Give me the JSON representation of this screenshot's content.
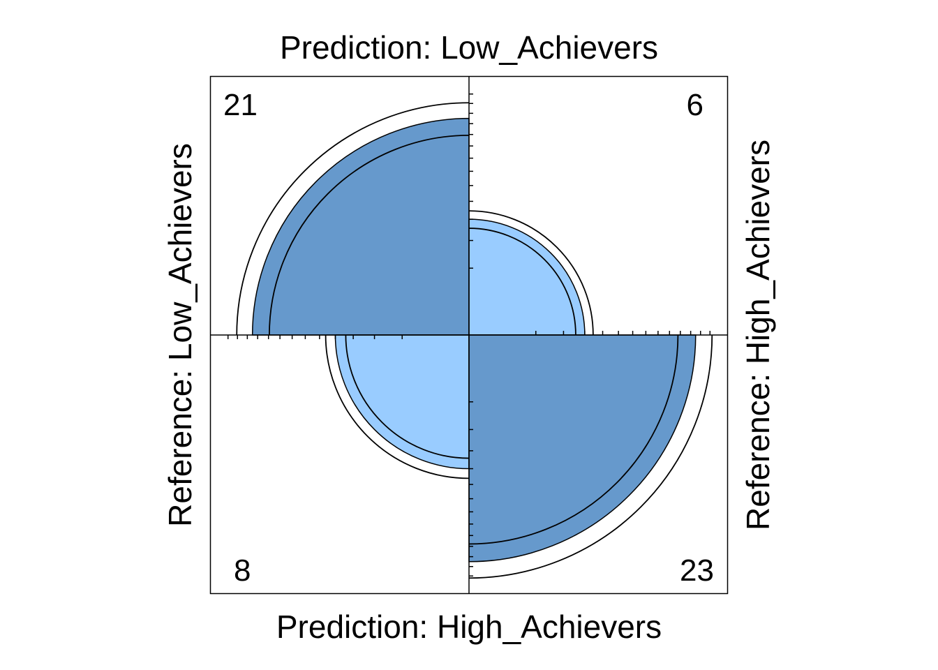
{
  "chart_data": {
    "type": "fourfold",
    "top_label": "Prediction: Low_Achievers",
    "bottom_label": "Prediction: High_Achievers",
    "left_label": "Reference: Low_Achievers",
    "right_label": "Reference: High_Achievers",
    "cells": [
      {
        "id": "top-left",
        "prediction": "Low_Achievers",
        "reference": "Low_Achievers",
        "count": "21",
        "value": 21,
        "quadrant": "top-left",
        "shade": "dark"
      },
      {
        "id": "top-right",
        "prediction": "Low_Achievers",
        "reference": "High_Achievers",
        "count": "6",
        "value": 6,
        "quadrant": "top-right",
        "shade": "light"
      },
      {
        "id": "bottom-left",
        "prediction": "High_Achievers",
        "reference": "Low_Achievers",
        "count": "8",
        "value": 8,
        "quadrant": "bottom-left",
        "shade": "light"
      },
      {
        "id": "bottom-right",
        "prediction": "High_Achievers",
        "reference": "High_Achievers",
        "count": "23",
        "value": 23,
        "quadrant": "bottom-right",
        "shade": "dark"
      }
    ],
    "confidence_ring_scale": {
      "inner": 0.85,
      "outer": 1.15
    },
    "colors": {
      "dark": "#6699cc",
      "light": "#99ccff",
      "outline": "#000000",
      "background": "#ffffff"
    }
  }
}
